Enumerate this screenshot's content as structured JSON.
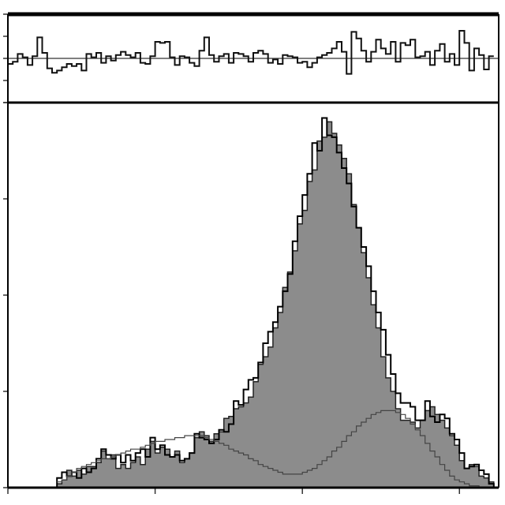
{
  "chart_data": [
    {
      "type": "line",
      "panel": "residuals",
      "xlim": [
        0,
        100
      ],
      "ylim": [
        -4,
        4
      ],
      "zero_line": true,
      "x": [
        0,
        1,
        2,
        3,
        4,
        5,
        6,
        7,
        8,
        9,
        10,
        11,
        12,
        13,
        14,
        15,
        16,
        17,
        18,
        19,
        20,
        21,
        22,
        23,
        24,
        25,
        26,
        27,
        28,
        29,
        30,
        31,
        32,
        33,
        34,
        35,
        36,
        37,
        38,
        39,
        40,
        41,
        42,
        43,
        44,
        45,
        46,
        47,
        48,
        49,
        50,
        51,
        52,
        53,
        54,
        55,
        56,
        57,
        58,
        59,
        60,
        61,
        62,
        63,
        64,
        65,
        66,
        67,
        68,
        69,
        70,
        71,
        72,
        73,
        74,
        75,
        76,
        77,
        78,
        79,
        80,
        81,
        82,
        83,
        84,
        85,
        86,
        87,
        88,
        89,
        90,
        91,
        92,
        93,
        94,
        95,
        96,
        97,
        98
      ],
      "series": [
        {
          "values": [
            -0.5,
            -0.3,
            0.4,
            0.1,
            -0.6,
            0.2,
            1.9,
            0.5,
            -0.9,
            -1.3,
            -1.1,
            -0.8,
            -0.5,
            -0.7,
            -0.5,
            -1.1,
            0.4,
            0.1,
            0.5,
            -0.4,
            0.2,
            -0.2,
            0.3,
            0.6,
            0.3,
            0.1,
            0.5,
            -0.4,
            -0.5,
            0.2,
            1.5,
            1.4,
            1.5,
            0.1,
            -0.6,
            0.2,
            0.1,
            -0.4,
            -0.7,
            0.7,
            1.9,
            0.3,
            -0.3,
            0.2,
            0.4,
            -0.4,
            0.5,
            0.4,
            0.2,
            -0.3,
            0.5,
            0.7,
            0.4,
            -0.4,
            -0.1,
            -0.5,
            0.3,
            0.2,
            0.1,
            -0.4,
            -0.3,
            -0.8,
            -0.4,
            0.1,
            0.3,
            0.5,
            0.9,
            1.5,
            0.6,
            -1.4,
            2.4,
            1.8,
            0.7,
            -0.3,
            0.6,
            1.7,
            0.9,
            0.4,
            1.5,
            -0.3,
            1.4,
            1.2,
            1.7,
            0.1,
            0.2,
            0.6,
            -0.6,
            0.7,
            1.3,
            -0.3,
            0.4,
            -0.6,
            2.5,
            1.4,
            -1.1,
            0.9,
            0.3,
            -1.0,
            0.2
          ]
        }
      ]
    },
    {
      "type": "area",
      "panel": "main",
      "xlim": [
        0,
        100
      ],
      "ylim": [
        0,
        200
      ],
      "x": [
        10,
        11,
        12,
        13,
        14,
        15,
        16,
        17,
        18,
        19,
        20,
        21,
        22,
        23,
        24,
        25,
        26,
        27,
        28,
        29,
        30,
        31,
        32,
        33,
        34,
        35,
        36,
        37,
        38,
        39,
        40,
        41,
        42,
        43,
        44,
        45,
        46,
        47,
        48,
        49,
        50,
        51,
        52,
        53,
        54,
        55,
        56,
        57,
        58,
        59,
        60,
        61,
        62,
        63,
        64,
        65,
        66,
        67,
        68,
        69,
        70,
        71,
        72,
        73,
        74,
        75,
        76,
        77,
        78,
        79,
        80,
        81,
        82,
        83,
        84,
        85,
        86,
        87,
        88,
        89,
        90,
        91,
        92,
        93,
        94,
        95,
        96,
        97,
        98
      ],
      "series": [
        {
          "values": [
            2,
            4,
            9,
            6,
            9,
            7,
            11,
            11,
            13,
            19,
            15,
            17,
            10,
            12,
            10,
            13,
            16,
            12,
            20,
            24,
            18,
            21,
            20,
            16,
            19,
            13,
            15,
            18,
            26,
            29,
            27,
            24,
            28,
            29,
            36,
            37,
            41,
            42,
            44,
            47,
            55,
            64,
            68,
            73,
            83,
            91,
            104,
            112,
            123,
            137,
            144,
            159,
            165,
            180,
            182,
            190,
            184,
            178,
            171,
            163,
            147,
            135,
            122,
            109,
            95,
            83,
            68,
            57,
            50,
            41,
            35,
            35,
            34,
            31,
            35,
            40,
            42,
            38,
            35,
            31,
            27,
            22,
            14,
            10,
            12,
            11,
            6,
            5,
            3
          ]
        },
        {
          "values": [
            5,
            8,
            6,
            8,
            5,
            10,
            8,
            10,
            15,
            20,
            17,
            15,
            17,
            13,
            17,
            14,
            18,
            20,
            16,
            26,
            20,
            22,
            17,
            16,
            17,
            14,
            15,
            18,
            28,
            26,
            25,
            23,
            25,
            30,
            29,
            33,
            45,
            43,
            51,
            56,
            57,
            65,
            75,
            81,
            86,
            94,
            102,
            111,
            128,
            141,
            152,
            163,
            179,
            175,
            192,
            183,
            182,
            174,
            166,
            158,
            146,
            135,
            125,
            115,
            102,
            91,
            82,
            69,
            59,
            49,
            44,
            44,
            42,
            35,
            35,
            45,
            37,
            34,
            38,
            36,
            28,
            25,
            18,
            10,
            11,
            12,
            9,
            7,
            2
          ]
        },
        {
          "values": [
            3,
            4,
            6,
            8,
            10,
            11,
            12,
            13,
            14,
            15,
            15,
            16,
            17,
            18,
            19,
            20,
            20,
            21,
            22,
            23,
            24,
            24,
            25,
            25,
            26,
            26,
            27,
            27,
            27,
            27,
            26,
            25,
            24,
            23,
            22,
            20,
            19,
            18,
            17,
            15,
            14,
            12,
            11,
            10,
            9,
            8,
            7,
            7,
            7,
            7,
            8,
            9,
            10,
            12,
            14,
            16,
            19,
            21,
            24,
            27,
            29,
            32,
            34,
            36,
            38,
            39,
            40,
            40,
            40,
            39,
            38,
            36,
            33,
            30,
            27,
            23,
            19,
            16,
            12,
            9,
            6,
            4,
            3,
            2,
            1,
            1,
            0,
            0,
            0
          ]
        }
      ]
    }
  ]
}
